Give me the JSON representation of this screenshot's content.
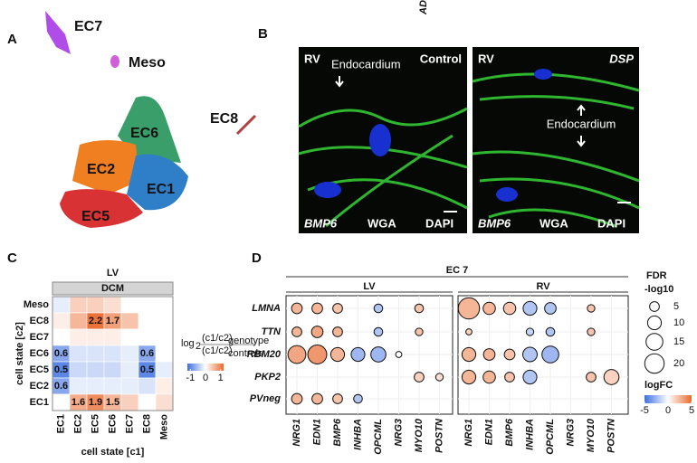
{
  "panel_labels": [
    "A",
    "B",
    "C",
    "D"
  ],
  "panel_a": {
    "clusters": [
      "EC7",
      "Meso",
      "EC6",
      "EC2",
      "EC1",
      "EC5",
      "EC8"
    ]
  },
  "panel_b": {
    "top_text": "ADAM",
    "images": [
      {
        "region": "RV",
        "annotation": "Endocardium",
        "condition": "Control",
        "stains": [
          "BMP6",
          "WGA",
          "DAPI"
        ]
      },
      {
        "region": "RV",
        "annotation": "Endocardium",
        "condition": "DSP",
        "stains": [
          "BMP6",
          "WGA",
          "DAPI"
        ]
      }
    ]
  },
  "chart_data": [
    {
      "type": "heatmap",
      "title": "LV",
      "strip": "DCM",
      "x_label": "cell state [c1]",
      "y_label": "cell state [c2]",
      "x_categories": [
        "EC1",
        "EC2",
        "EC5",
        "EC6",
        "EC7",
        "EC8",
        "Meso"
      ],
      "y_categories": [
        "Meso",
        "EC8",
        "EC7",
        "EC6",
        "EC5",
        "EC2",
        "EC1"
      ],
      "values": [
        [
          0.9,
          1.3,
          1.3,
          1.2,
          1.0,
          1.0,
          1.0
        ],
        [
          1.1,
          1.5,
          2.2,
          1.7,
          1.4,
          1.0,
          1.0
        ],
        [
          1.0,
          1.1,
          1.1,
          1.1,
          1.0,
          1.0,
          1.0
        ],
        [
          0.6,
          0.85,
          0.85,
          0.85,
          0.9,
          0.6,
          1.0
        ],
        [
          0.5,
          0.8,
          0.8,
          0.8,
          0.9,
          0.5,
          0.9
        ],
        [
          0.6,
          0.9,
          0.9,
          0.9,
          0.9,
          0.85,
          1.1
        ],
        [
          1.0,
          1.6,
          1.9,
          1.5,
          1.3,
          1.0,
          1.2
        ]
      ],
      "value_labels": [
        [
          null,
          null,
          null,
          null,
          null,
          null,
          null
        ],
        [
          null,
          null,
          "2.2",
          "1.7",
          null,
          null,
          null
        ],
        [
          null,
          null,
          null,
          null,
          null,
          null,
          null
        ],
        [
          "0.6",
          null,
          null,
          null,
          null,
          "0.6",
          null
        ],
        [
          "0.5",
          null,
          null,
          null,
          null,
          "0.5",
          null
        ],
        [
          "0.6",
          null,
          null,
          null,
          null,
          null,
          null
        ],
        [
          null,
          "1.6",
          "1.9",
          "1.5",
          null,
          null,
          null
        ]
      ],
      "colorbar": {
        "label_parts": [
          "log",
          "2",
          "(c1/c2)",
          "genotype",
          "(c1/c2)",
          "controls"
        ],
        "scale": "log2",
        "lim": [
          -1.2,
          1.2
        ],
        "ticks": [
          -1,
          0,
          1
        ],
        "colors": [
          "#3d6fe0",
          "#ffffff",
          "#ea6a2e"
        ]
      }
    },
    {
      "type": "dot",
      "title": "EC 7",
      "rows": [
        "LMNA",
        "TTN",
        "RBM20",
        "PKP2",
        "PVneg"
      ],
      "columns": [
        "NRG1",
        "EDN1",
        "BMP6",
        "INHBA",
        "OPCML",
        "NRG3",
        "MYO10",
        "POSTN"
      ],
      "facets": [
        {
          "name": "LV",
          "sizes": [
            [
              6,
              6,
              5,
              null,
              4,
              null,
              4,
              null
            ],
            [
              5,
              7,
              5,
              null,
              4,
              null,
              3,
              null
            ],
            [
              17,
              19,
              10,
              10,
              12,
              2,
              null,
              null
            ],
            [
              null,
              null,
              null,
              null,
              null,
              null,
              5,
              3
            ],
            [
              6,
              6,
              5,
              4,
              null,
              null,
              null,
              null
            ]
          ],
          "values": [
            [
              2.5,
              2.5,
              2,
              null,
              -2,
              null,
              2,
              null
            ],
            [
              2.5,
              3,
              2.5,
              null,
              -2,
              null,
              2,
              null
            ],
            [
              3,
              3.5,
              2.5,
              -2.5,
              -2.5,
              0,
              null,
              null
            ],
            [
              null,
              null,
              null,
              null,
              null,
              null,
              1.5,
              1
            ],
            [
              2.5,
              2.5,
              2,
              -2,
              null,
              null,
              null,
              null
            ]
          ]
        },
        {
          "name": "RV",
          "sizes": [
            [
              24,
              8,
              8,
              10,
              7,
              null,
              3,
              null
            ],
            [
              2,
              null,
              null,
              3,
              4,
              null,
              3,
              null
            ],
            [
              10,
              7,
              6,
              11,
              15,
              null,
              null,
              null
            ],
            [
              10,
              8,
              5,
              10,
              null,
              null,
              5,
              12
            ],
            [
              null,
              null,
              null,
              null,
              null,
              null,
              null,
              null
            ]
          ],
          "values": [
            [
              2.5,
              2.5,
              2,
              -2,
              -2,
              null,
              2,
              null
            ],
            [
              1.5,
              null,
              null,
              -1.5,
              -2,
              null,
              2,
              null
            ],
            [
              2.5,
              2.5,
              2,
              -2,
              -2.5,
              null,
              null,
              null
            ],
            [
              2.5,
              2.5,
              2,
              -2,
              null,
              null,
              2,
              1.5
            ],
            [
              null,
              null,
              null,
              null,
              null,
              null,
              null,
              null
            ]
          ]
        }
      ],
      "size_legend": {
        "title": "FDR",
        "subtitle": "-log10",
        "ticks": [
          5,
          10,
          15,
          20
        ]
      },
      "color_legend": {
        "title": "logFC",
        "lim": [
          -5,
          5
        ],
        "ticks": [
          -5,
          0,
          5
        ],
        "colors": [
          "#3d6fe0",
          "#ffffff",
          "#ea6a2e"
        ]
      }
    }
  ]
}
